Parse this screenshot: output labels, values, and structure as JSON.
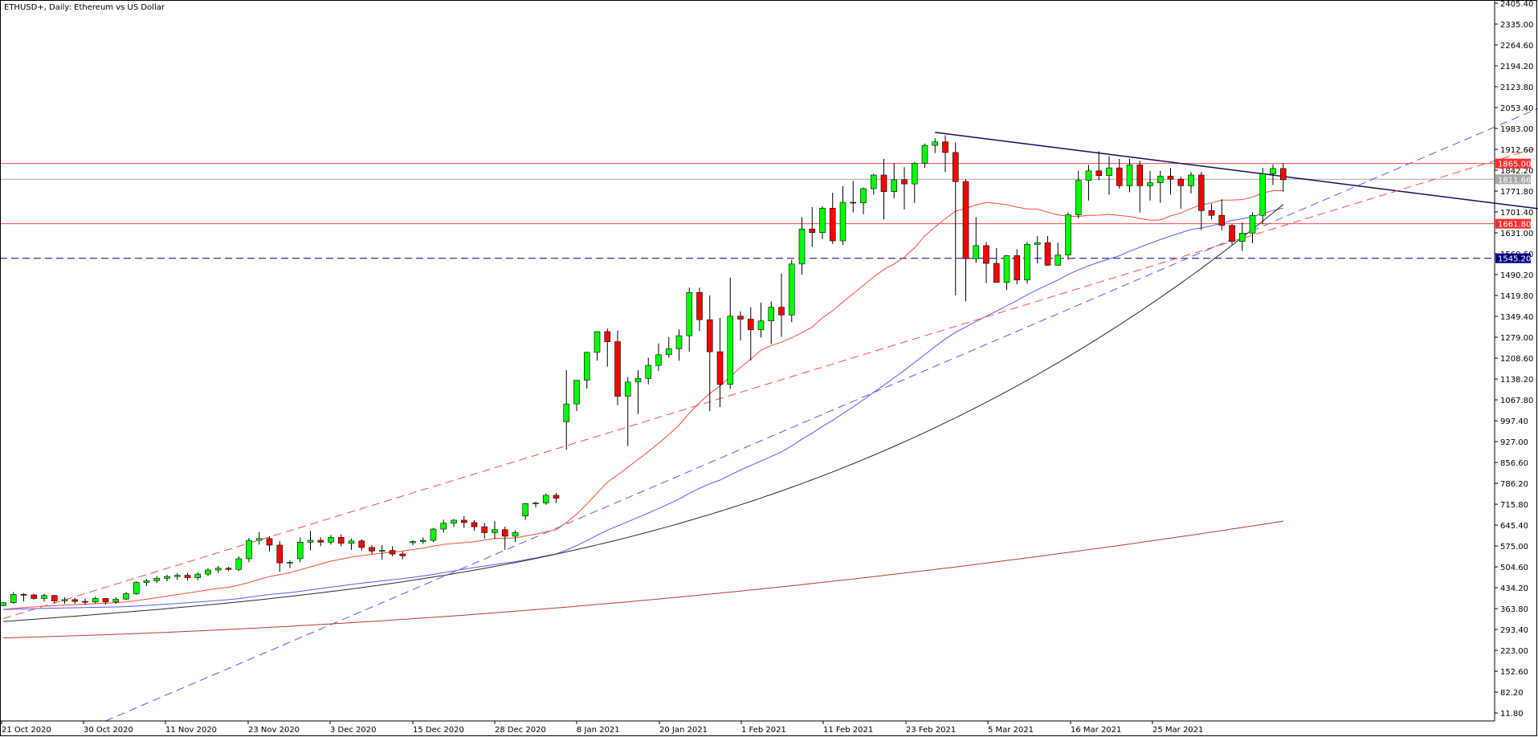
{
  "chart_data": {
    "type": "candlestick",
    "title": "ETHUSD+, Daily:  Ethereum vs US Dollar",
    "ylim": [
      -15,
      2405.4
    ],
    "y_ticks": [
      "2405.40",
      "2335.00",
      "2264.60",
      "2194.20",
      "2123.80",
      "2053.40",
      "1983.00",
      "1912.60",
      "1842.20",
      "1771.80",
      "1701.40",
      "1631.00",
      "1560.60",
      "1490.20",
      "1419.80",
      "1349.40",
      "1279.00",
      "1208.60",
      "1138.20",
      "1067.80",
      "997.40",
      "927.00",
      "856.60",
      "786.20",
      "715.80",
      "645.40",
      "575.00",
      "504.60",
      "434.20",
      "363.80",
      "293.40",
      "223.00",
      "152.60",
      "82.20",
      "11.80"
    ],
    "x_ticks": [
      {
        "label": "21 Oct 2020",
        "index": 0
      },
      {
        "label": "30 Oct 2020",
        "index": 8
      },
      {
        "label": "11 Nov 2020",
        "index": 16
      },
      {
        "label": "23 Nov 2020",
        "index": 24
      },
      {
        "label": "3 Dec 2020",
        "index": 32
      },
      {
        "label": "15 Dec 2020",
        "index": 40
      },
      {
        "label": "28 Dec 2020",
        "index": 48
      },
      {
        "label": "8 Jan 2021",
        "index": 56
      },
      {
        "label": "20 Jan 2021",
        "index": 64
      },
      {
        "label": "1 Feb 2021",
        "index": 72
      },
      {
        "label": "11 Feb 2021",
        "index": 80
      },
      {
        "label": "23 Feb 2021",
        "index": 88
      },
      {
        "label": "5 Mar 2021",
        "index": 96
      },
      {
        "label": "16 Mar 2021",
        "index": 104
      },
      {
        "label": "25 Mar 2021",
        "index": 112
      }
    ],
    "candles": [
      [
        374,
        386,
        372,
        384
      ],
      [
        384,
        420,
        380,
        412
      ],
      [
        412,
        416,
        388,
        410
      ],
      [
        410,
        414,
        394,
        398
      ],
      [
        398,
        414,
        388,
        408
      ],
      [
        408,
        410,
        382,
        390
      ],
      [
        390,
        402,
        380,
        394
      ],
      [
        394,
        400,
        380,
        388
      ],
      [
        388,
        398,
        376,
        386
      ],
      [
        386,
        404,
        382,
        398
      ],
      [
        398,
        400,
        378,
        386
      ],
      [
        386,
        402,
        380,
        396
      ],
      [
        396,
        420,
        392,
        414
      ],
      [
        414,
        456,
        410,
        452
      ],
      [
        452,
        464,
        440,
        458
      ],
      [
        458,
        474,
        450,
        466
      ],
      [
        466,
        478,
        456,
        472
      ],
      [
        472,
        484,
        460,
        476
      ],
      [
        476,
        484,
        458,
        468
      ],
      [
        468,
        486,
        460,
        480
      ],
      [
        480,
        500,
        474,
        494
      ],
      [
        494,
        508,
        484,
        500
      ],
      [
        500,
        504,
        490,
        496
      ],
      [
        496,
        540,
        490,
        532
      ],
      [
        532,
        602,
        520,
        594
      ],
      [
        594,
        622,
        580,
        600
      ],
      [
        600,
        608,
        556,
        578
      ],
      [
        578,
        592,
        488,
        518
      ],
      [
        518,
        526,
        500,
        520
      ],
      [
        532,
        604,
        520,
        588
      ],
      [
        588,
        626,
        560,
        594
      ],
      [
        594,
        604,
        574,
        588
      ],
      [
        588,
        612,
        580,
        604
      ],
      [
        604,
        614,
        574,
        584
      ],
      [
        584,
        600,
        562,
        592
      ],
      [
        592,
        598,
        560,
        570
      ],
      [
        570,
        578,
        548,
        558
      ],
      [
        558,
        578,
        530,
        560
      ],
      [
        560,
        574,
        540,
        548
      ],
      [
        548,
        556,
        530,
        542
      ],
      [
        586,
        594,
        578,
        590
      ],
      [
        590,
        604,
        582,
        594
      ],
      [
        594,
        636,
        588,
        632
      ],
      [
        632,
        664,
        620,
        652
      ],
      [
        652,
        666,
        640,
        662
      ],
      [
        662,
        676,
        636,
        654
      ],
      [
        654,
        662,
        626,
        640
      ],
      [
        640,
        652,
        600,
        620
      ],
      [
        620,
        658,
        598,
        630
      ],
      [
        630,
        640,
        562,
        608
      ],
      [
        608,
        628,
        588,
        620
      ],
      [
        676,
        720,
        664,
        718
      ],
      [
        718,
        724,
        706,
        720
      ],
      [
        720,
        752,
        714,
        746
      ],
      [
        746,
        754,
        720,
        736
      ],
      [
        994,
        1168,
        900,
        1054
      ],
      [
        1054,
        1130,
        1030,
        1134
      ],
      [
        1134,
        1230,
        1106,
        1228
      ],
      [
        1228,
        1294,
        1200,
        1298
      ],
      [
        1298,
        1308,
        1180,
        1264
      ],
      [
        1264,
        1302,
        1050,
        1080
      ],
      [
        1080,
        1145,
        912,
        1128
      ],
      [
        1128,
        1168,
        1020,
        1140
      ],
      [
        1140,
        1210,
        1120,
        1184
      ],
      [
        1184,
        1258,
        1165,
        1220
      ],
      [
        1220,
        1280,
        1210,
        1240
      ],
      [
        1240,
        1305,
        1200,
        1284
      ],
      [
        1284,
        1446,
        1230,
        1430
      ],
      [
        1430,
        1446,
        1300,
        1338
      ],
      [
        1338,
        1420,
        1030,
        1230
      ],
      [
        1230,
        1344,
        1044,
        1120
      ],
      [
        1120,
        1480,
        1104,
        1350
      ],
      [
        1350,
        1366,
        1268,
        1340
      ],
      [
        1340,
        1380,
        1200,
        1304
      ],
      [
        1304,
        1396,
        1278,
        1334
      ],
      [
        1334,
        1400,
        1256,
        1380
      ],
      [
        1380,
        1494,
        1280,
        1354
      ],
      [
        1354,
        1540,
        1330,
        1526
      ],
      [
        1526,
        1684,
        1490,
        1644
      ],
      [
        1644,
        1718,
        1584,
        1632
      ],
      [
        1632,
        1720,
        1610,
        1714
      ],
      [
        1714,
        1766,
        1594,
        1604
      ],
      [
        1604,
        1788,
        1590,
        1734
      ],
      [
        1734,
        1806,
        1700,
        1732
      ],
      [
        1732,
        1784,
        1694,
        1780
      ],
      [
        1780,
        1830,
        1760,
        1826
      ],
      [
        1826,
        1880,
        1676,
        1770
      ],
      [
        1770,
        1866,
        1748,
        1810
      ],
      [
        1810,
        1852,
        1710,
        1796
      ],
      [
        1796,
        1870,
        1732,
        1866
      ],
      [
        1866,
        1932,
        1850,
        1926
      ],
      [
        1926,
        1950,
        1900,
        1938
      ],
      [
        1938,
        1960,
        1836,
        1902
      ],
      [
        1902,
        1936,
        1420,
        1804
      ],
      [
        1804,
        1812,
        1400,
        1544
      ],
      [
        1544,
        1684,
        1530,
        1588
      ],
      [
        1588,
        1600,
        1462,
        1528
      ],
      [
        1528,
        1580,
        1480,
        1464
      ],
      [
        1464,
        1556,
        1438,
        1554
      ],
      [
        1554,
        1576,
        1458,
        1472
      ],
      [
        1472,
        1600,
        1460,
        1592
      ],
      [
        1592,
        1620,
        1528,
        1598
      ],
      [
        1598,
        1620,
        1520,
        1522
      ],
      [
        1522,
        1598,
        1520,
        1556
      ],
      [
        1556,
        1700,
        1540,
        1692
      ]
    ],
    "candles_tail": [
      [
        1692,
        1840,
        1680,
        1808
      ],
      [
        1808,
        1860,
        1740,
        1840
      ],
      [
        1840,
        1906,
        1808,
        1824
      ],
      [
        1824,
        1890,
        1760,
        1850
      ],
      [
        1850,
        1880,
        1780,
        1790
      ],
      [
        1790,
        1880,
        1768,
        1860
      ],
      [
        1860,
        1874,
        1700,
        1790
      ],
      [
        1790,
        1840,
        1740,
        1800
      ],
      [
        1800,
        1840,
        1732,
        1822
      ],
      [
        1822,
        1850,
        1760,
        1812
      ],
      [
        1812,
        1820,
        1712,
        1790
      ],
      [
        1790,
        1836,
        1764,
        1826
      ],
      [
        1826,
        1836,
        1640,
        1706
      ],
      [
        1706,
        1730,
        1676,
        1690
      ],
      [
        1690,
        1744,
        1640,
        1656
      ],
      [
        1656,
        1660,
        1592,
        1602
      ],
      [
        1602,
        1666,
        1570,
        1630
      ],
      [
        1630,
        1700,
        1596,
        1690
      ],
      [
        1690,
        1850,
        1660,
        1830
      ],
      [
        1830,
        1862,
        1792,
        1848
      ],
      [
        1848,
        1866,
        1770,
        1810
      ]
    ],
    "series": [
      {
        "name": "MA red (fast)",
        "color": "#ff4a3d"
      },
      {
        "name": "MA blue",
        "color": "#5a5aff"
      },
      {
        "name": "MA black",
        "color": "#2b2b2b"
      },
      {
        "name": "MA brown",
        "color": "#c0392b"
      }
    ],
    "horizontal_levels": [
      {
        "value": 1865.0,
        "label": "1865.00",
        "color": "#ff4a4a",
        "style": "solid",
        "tag": true
      },
      {
        "value": 1811.66,
        "label": "1811.66",
        "color": "#a8a8a8",
        "style": "solid",
        "tag": true
      },
      {
        "value": 1661.8,
        "label": "1661.80",
        "color": "#ff4a4a",
        "style": "solid",
        "tag": true
      },
      {
        "value": 1545.2,
        "label": "1545.20",
        "color": "#000080",
        "style": "dashed",
        "tag": true
      }
    ],
    "trendlines": [
      {
        "name": "resistance",
        "color": "#101060",
        "style": "solid",
        "from": [
          91,
          1970
        ],
        "to": [
          150,
          1712
        ]
      },
      {
        "name": "support-red",
        "color": "#ff4a4a",
        "style": "dashed",
        "from": [
          0,
          330
        ],
        "to": [
          150,
          1920
        ]
      },
      {
        "name": "support-blue",
        "color": "#5a5aff",
        "style": "dashed",
        "from": [
          10,
          -15
        ],
        "to": [
          150,
          2052
        ]
      }
    ],
    "colors": {
      "bull": "#00ff00",
      "bear": "#ff0000",
      "wick": "#000000",
      "axis": "#000000"
    }
  }
}
